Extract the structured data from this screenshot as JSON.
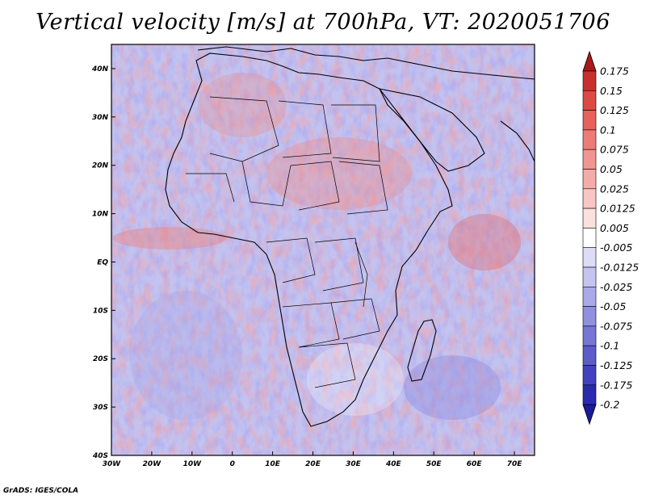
{
  "title": "Vertical velocity [m/s] at 700hPa, VT: 2020051706",
  "credit": "GrADS: IGES/COLA",
  "map": {
    "lat_labels": [
      "40N",
      "30N",
      "20N",
      "10N",
      "EQ",
      "10S",
      "20S",
      "30S",
      "40S"
    ],
    "lat_values": [
      40,
      30,
      20,
      10,
      0,
      -10,
      -20,
      -30,
      -40
    ],
    "lon_labels": [
      "30W",
      "20W",
      "10W",
      "0",
      "10E",
      "20E",
      "30E",
      "40E",
      "50E",
      "60E",
      "70E"
    ],
    "lon_values": [
      -30,
      -20,
      -10,
      0,
      10,
      20,
      30,
      40,
      50,
      60,
      70
    ],
    "lon_range": [
      -30,
      75
    ],
    "lat_range": [
      -40,
      45
    ]
  },
  "colorbar": {
    "labels": [
      "0.175",
      "0.15",
      "0.125",
      "0.1",
      "0.075",
      "0.05",
      "0.025",
      "0.0125",
      "0.005",
      "-0.005",
      "-0.0125",
      "-0.025",
      "-0.05",
      "-0.075",
      "-0.1",
      "-0.125",
      "-0.175",
      "-0.2"
    ],
    "colors": [
      "#a71a1a",
      "#c8302e",
      "#dc4a45",
      "#e8625c",
      "#ee7c76",
      "#f29590",
      "#f5aca8",
      "#f8c6c3",
      "#fbe0de",
      "#ffffff",
      "#dcdcf6",
      "#c4c4ef",
      "#aaaae8",
      "#9090e0",
      "#7676d6",
      "#5c5ccb",
      "#4242bf",
      "#2a2aae",
      "#1a1a9a"
    ]
  }
}
